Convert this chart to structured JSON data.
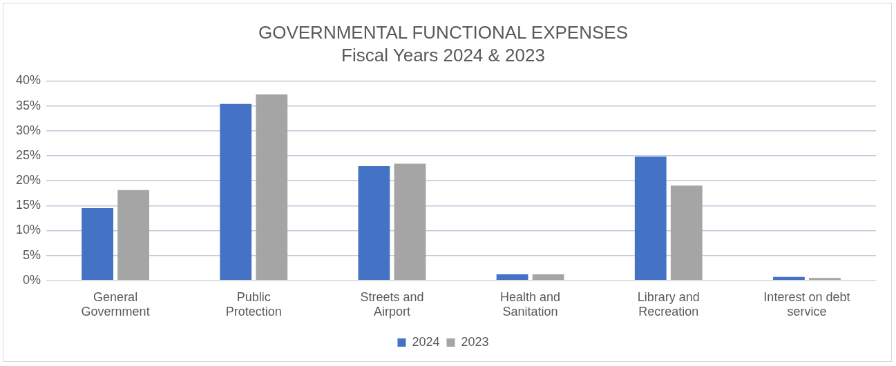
{
  "chart_data": {
    "type": "bar",
    "title": "GOVERNMENTAL FUNCTIONAL EXPENSES",
    "subtitle": "Fiscal Years 2024 & 2023",
    "categories": [
      "General Government",
      "Public Protection",
      "Streets and Airport",
      "Health and Sanitation",
      "Library and Recreation",
      "Interest on debt service"
    ],
    "series": [
      {
        "name": "2024",
        "color": "#4472c4",
        "values": [
          14.5,
          35.4,
          22.9,
          1.2,
          24.8,
          0.7
        ]
      },
      {
        "name": "2023",
        "color": "#a5a5a5",
        "values": [
          18.1,
          37.3,
          23.4,
          1.2,
          19.0,
          0.5
        ]
      }
    ],
    "ylim": [
      0,
      40
    ],
    "yticks": [
      {
        "value": 0,
        "label": "0%"
      },
      {
        "value": 5,
        "label": "5%"
      },
      {
        "value": 10,
        "label": "10%"
      },
      {
        "value": 15,
        "label": "15%"
      },
      {
        "value": 20,
        "label": "20%"
      },
      {
        "value": 25,
        "label": "25%"
      },
      {
        "value": 30,
        "label": "30%"
      },
      {
        "value": 35,
        "label": "35%"
      },
      {
        "value": 40,
        "label": "40%"
      }
    ],
    "grid": "y",
    "legend": "bottom"
  }
}
